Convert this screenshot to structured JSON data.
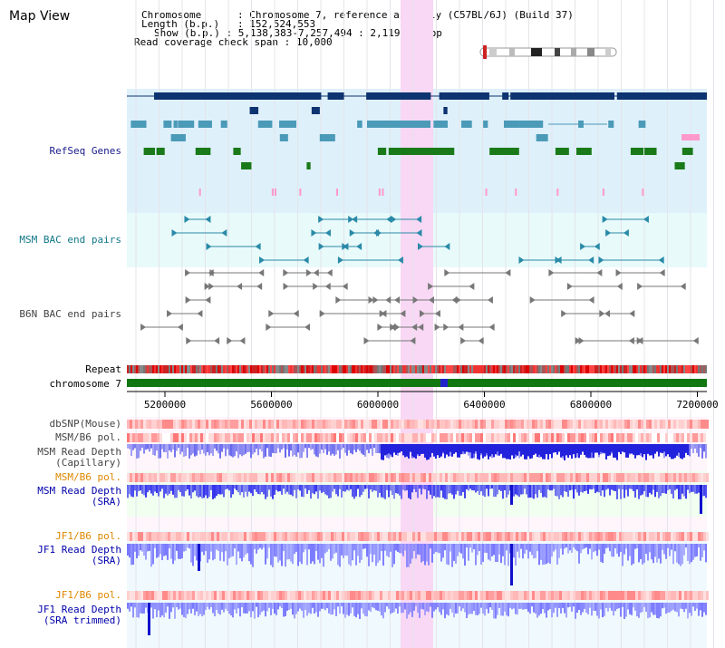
{
  "title": "Map View",
  "header": {
    "chromosome_key": "Chromosome",
    "chromosome_val": "Chromosome 7, reference assembly (C57BL/6J) (Build 37)",
    "length_key": "Length (b.p.)",
    "length_val": "152,524,553",
    "show_key": "Show (b.p.)",
    "show_val": "5,138,383-7,257,494 : 2,119,112 bp",
    "span_key": "Read coverage check span",
    "span_val": "10,000"
  },
  "labels": {
    "refseq": "RefSeq Genes",
    "msm_bac": "MSM BAC end pairs",
    "b6n_bac": "B6N BAC end pairs",
    "repeat": "Repeat",
    "chromosome": "chromosome 7",
    "dbsnp": "dbSNP(Mouse)",
    "msm_b6_pol_1": "MSM/B6 pol.",
    "msm_read_depth_cap_1": "MSM Read Depth",
    "msm_read_depth_cap_2": "(Capillary)",
    "msm_b6_pol_2": "MSM/B6 pol.",
    "msm_read_depth_sra_1": "MSM Read Depth",
    "msm_read_depth_sra_2": "(SRA)",
    "jf1_b6_pol_1": "JF1/B6 pol.",
    "jf1_read_depth_sra_1": "JF1 Read Depth",
    "jf1_read_depth_sra_2": "(SRA)",
    "jf1_b6_pol_2": "JF1/B6 pol.",
    "jf1_read_depth_trim_1": "JF1 Read Depth",
    "jf1_read_depth_trim_2": "(SRA trimmed)"
  },
  "axis_ticks": [
    "5200000",
    "5600000",
    "6000000",
    "6400000",
    "6800000",
    "7200000"
  ],
  "colors": {
    "refseq_bg": "#def0fa",
    "msm_bac_bg": "#e8fafa",
    "highlight": "#f8d8f4",
    "gene_dark": "#0d3370",
    "gene_mid": "#4a9ab8",
    "gene_green": "#1a7a1a",
    "pink_mark": "#ff99cc",
    "msm_bac_color": "#2a8aa8",
    "b6n_color": "#777777",
    "chromosome_bar": "#117711",
    "chromosome_marker": "#2222cc",
    "label_navy": "#1a1a8c",
    "label_teal": "#117788",
    "label_gray": "#444444",
    "label_orange": "#dd8800",
    "label_blue": "#0000aa",
    "depth_blue": "#3333ee"
  }
}
